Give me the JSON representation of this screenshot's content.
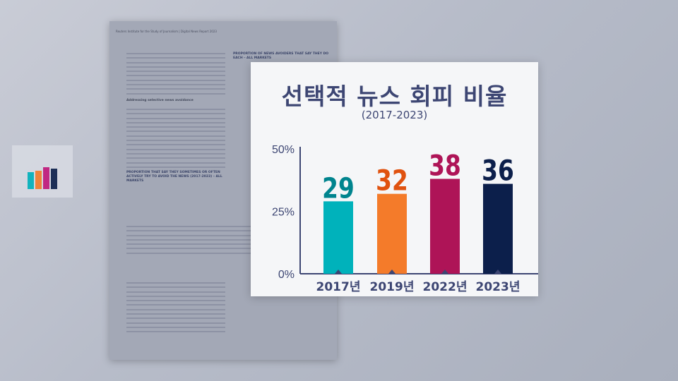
{
  "background_document": {
    "header": "Reuters Institute for the Study of Journalism | Digital News Report 2023",
    "section_heading": "Addressing selective news avoidance",
    "right_chart_title": "PROPORTION OF NEWS AVOIDERS THAT SAY THEY DO EACH – ALL MARKETS",
    "left_chart_title": "PROPORTION THAT SAY THEY SOMETIMES OR OFTEN ACTIVELY TRY TO AVOID THE NEWS (2017-2023) – ALL MARKETS"
  },
  "chart_data": {
    "type": "bar",
    "title": "선택적 뉴스 회피 비율",
    "subtitle": "(2017-2023)",
    "categories": [
      "2017년",
      "2019년",
      "2022년",
      "2023년"
    ],
    "values": [
      29,
      32,
      38,
      36
    ],
    "data_labels": [
      "29",
      "32",
      "38",
      "36"
    ],
    "y_ticks": [
      "0%",
      "25%",
      "50%"
    ],
    "ylim": [
      0,
      50
    ],
    "grid": false,
    "bar_colors": [
      "#00b2bb",
      "#f47b2a",
      "#ae1457",
      "#0c1f4b"
    ],
    "label_colors": [
      "#00848e",
      "#e0520f",
      "#ae1457",
      "#0c1f4b"
    ],
    "axis_color": "#3d4673"
  }
}
